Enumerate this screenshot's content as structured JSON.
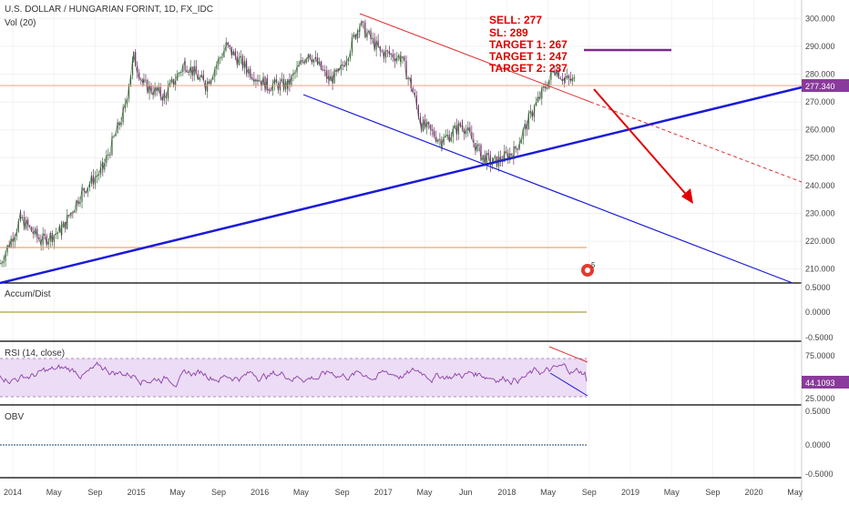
{
  "header": {
    "symbol_title": "U.S. DOLLAR / HUNGARIAN FORINT, 1D, FX_IDC",
    "volume_label": "Vol (20)"
  },
  "annotation": {
    "lines": [
      "SELL:  277",
      "SL:  289",
      "TARGET 1:  267",
      "TARGET 1:  247",
      "TARGET 2:  237"
    ],
    "color": "#e00000"
  },
  "colors": {
    "candle_up": "#3a6b3a",
    "candle_down": "#7a2a6e",
    "trend_blue": "#1a1adb",
    "resistance_red": "#e03030",
    "orange_level": "#f4a460",
    "price_line": "#f0a080",
    "rsi_line": "#8c3fa8",
    "rsi_band": "#ecdcf5",
    "olive_line": "#a8a040",
    "obv_line": "#4a6a8a",
    "sl_line": "#7a2a8a"
  },
  "chart_data": [
    {
      "type": "candlestick",
      "title": "U.S. DOLLAR / HUNGARIAN FORINT, 1D, FX_IDC",
      "ylim": [
        205,
        305
      ],
      "y_ticks": [
        "210.000",
        "220.000",
        "230.000",
        "240.000",
        "250.000",
        "260.000",
        "270.000",
        "280.000",
        "290.000",
        "300.000"
      ],
      "last_price_label": "277.340",
      "last_price": 277.34,
      "x_ticks": [
        "2014",
        "May",
        "Sep",
        "2015",
        "May",
        "Sep",
        "2016",
        "May",
        "Sep",
        "2017",
        "May",
        "Jun",
        "2018",
        "May",
        "Sep",
        "2019",
        "May",
        "Sep",
        "2020",
        "May"
      ],
      "price_path": [
        [
          "2014-01",
          212
        ],
        [
          "2014-03",
          228
        ],
        [
          "2014-05",
          220
        ],
        [
          "2014-07",
          224
        ],
        [
          "2014-09",
          238
        ],
        [
          "2014-11",
          246
        ],
        [
          "2015-01",
          266
        ],
        [
          "2015-02",
          286
        ],
        [
          "2015-03",
          276
        ],
        [
          "2015-05",
          272
        ],
        [
          "2015-07",
          284
        ],
        [
          "2015-09",
          276
        ],
        [
          "2015-11",
          290
        ],
        [
          "2016-01",
          282
        ],
        [
          "2016-03",
          276
        ],
        [
          "2016-05",
          276
        ],
        [
          "2016-07",
          288
        ],
        [
          "2016-09",
          278
        ],
        [
          "2016-10",
          280
        ],
        [
          "2016-12",
          298
        ],
        [
          "2017-02",
          288
        ],
        [
          "2017-04",
          286
        ],
        [
          "2017-05",
          276
        ],
        [
          "2017-06",
          262
        ],
        [
          "2017-08",
          256
        ],
        [
          "2017-10",
          262
        ],
        [
          "2017-12",
          250
        ],
        [
          "2018-01",
          248
        ],
        [
          "2018-03",
          252
        ],
        [
          "2018-05",
          268
        ],
        [
          "2018-07",
          282
        ],
        [
          "2018-08",
          278
        ],
        [
          "2018-09",
          277.34
        ]
      ],
      "levels": [
        {
          "name": "orange-horizontal-level",
          "y": 220.5
        },
        {
          "name": "current-price-line",
          "y": 277.34
        },
        {
          "name": "stop-loss-line",
          "y": 289
        }
      ]
    },
    {
      "type": "line",
      "title": "Accum/Dist",
      "ylim": [
        -0.5,
        0.5
      ],
      "y_ticks": [
        "0.5000",
        "0.0000",
        "-0.5000"
      ],
      "values": [
        0,
        0
      ]
    },
    {
      "type": "line",
      "title": "RSI (14, close)",
      "ylim": [
        15,
        90
      ],
      "y_ticks": [
        "75.0000",
        "25.0000"
      ],
      "band": [
        30,
        70
      ],
      "last_value_label": "44.1093",
      "last_value": 44.1093
    },
    {
      "type": "line",
      "title": "OBV",
      "ylim": [
        -0.5,
        0.5
      ],
      "y_ticks": [
        "0.5000",
        "0.0000",
        "-0.5000"
      ],
      "values": [
        0,
        0
      ]
    }
  ]
}
